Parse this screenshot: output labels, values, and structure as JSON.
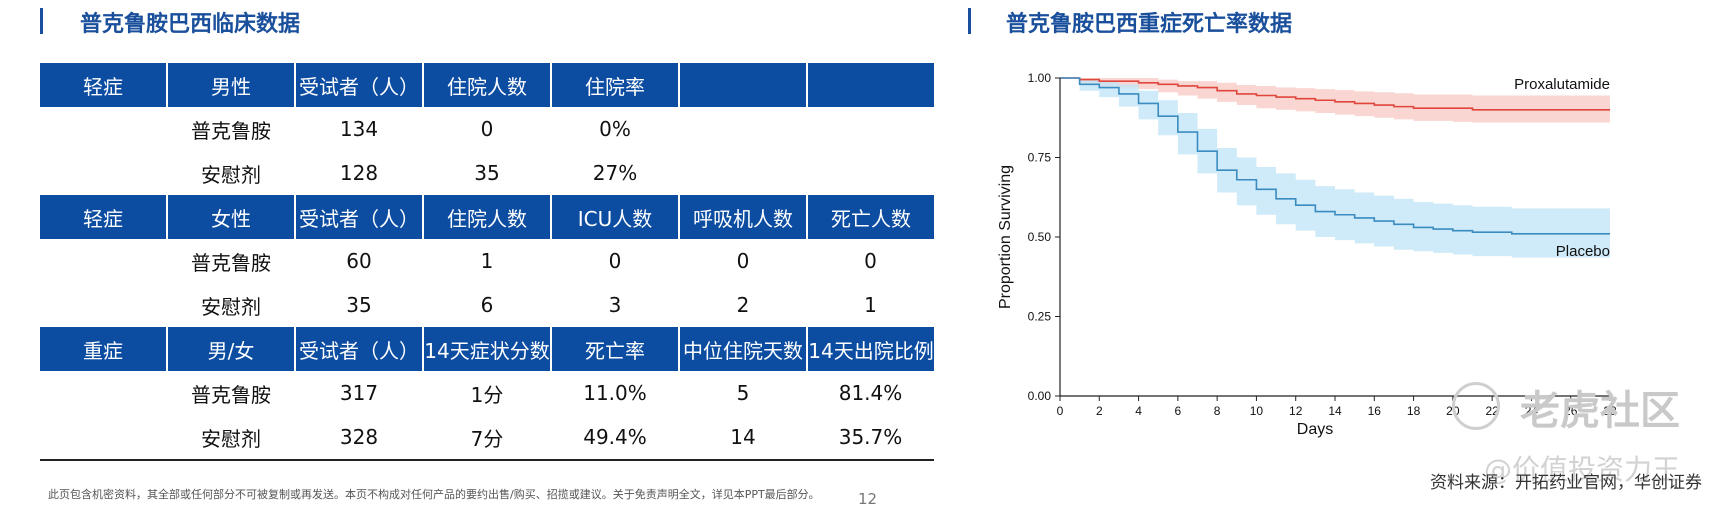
{
  "left": {
    "title": "普克鲁胺巴西临床数据",
    "table": [
      {
        "type": "header",
        "cells": [
          "轻症",
          "男性",
          "受试者（人）",
          "住院人数",
          "住院率",
          "",
          ""
        ]
      },
      {
        "type": "row",
        "cells": [
          "",
          "普克鲁胺",
          "134",
          "0",
          "0%",
          "",
          ""
        ]
      },
      {
        "type": "row",
        "cells": [
          "",
          "安慰剂",
          "128",
          "35",
          "27%",
          "",
          ""
        ]
      },
      {
        "type": "header",
        "cells": [
          "轻症",
          "女性",
          "受试者（人）",
          "住院人数",
          "ICU人数",
          "呼吸机人数",
          "死亡人数"
        ]
      },
      {
        "type": "row",
        "cells": [
          "",
          "普克鲁胺",
          "60",
          "1",
          "0",
          "0",
          "0"
        ]
      },
      {
        "type": "row",
        "cells": [
          "",
          "安慰剂",
          "35",
          "6",
          "3",
          "2",
          "1"
        ]
      },
      {
        "type": "header",
        "cells": [
          "重症",
          "男/女",
          "受试者（人）",
          "14天症状分数",
          "死亡率",
          "中位住院天数",
          "14天出院比例"
        ]
      },
      {
        "type": "row",
        "cells": [
          "",
          "普克鲁胺",
          "317",
          "1分",
          "11.0%",
          "5",
          "81.4%"
        ]
      },
      {
        "type": "row",
        "cells": [
          "",
          "安慰剂",
          "328",
          "7分",
          "49.4%",
          "14",
          "35.7%"
        ]
      }
    ],
    "footnote": "此页包含机密资料，其全部或任何部分不可被复制或再发送。本页不构成对任何产品的要约出售/购买、招揽或建议。关于免责声明全文，详见本PPT最后部分。",
    "page_number": "12"
  },
  "right": {
    "title": "普克鲁胺巴西重症死亡率数据",
    "source": "资料来源：开拓药业官网，华创证券",
    "watermark": "老虎社区",
    "watermark2": "@价值投资力王"
  },
  "chart_data": {
    "type": "line",
    "xlabel": "Days",
    "ylabel": "Proportion Surviving",
    "xlim": [
      0,
      28
    ],
    "ylim": [
      0,
      1
    ],
    "x_ticks": [
      "0",
      "2",
      "4",
      "6",
      "8",
      "10",
      "12",
      "14",
      "16",
      "18",
      "20",
      "22",
      "24",
      "26",
      "28"
    ],
    "y_ticks": [
      "0.00",
      "0.25",
      "0.50",
      "0.75",
      "1.00"
    ],
    "grid": false,
    "series": [
      {
        "name": "Proxalutamide",
        "color": "#e0463c",
        "band_color": "#f7c8c2",
        "x": [
          0,
          1,
          2,
          3,
          4,
          5,
          6,
          7,
          8,
          9,
          10,
          11,
          12,
          13,
          14,
          15,
          16,
          17,
          18,
          19,
          20,
          21,
          22,
          23,
          24,
          25,
          26,
          27,
          28
        ],
        "y": [
          1.0,
          0.995,
          0.99,
          0.99,
          0.985,
          0.98,
          0.975,
          0.97,
          0.96,
          0.95,
          0.945,
          0.94,
          0.935,
          0.93,
          0.925,
          0.92,
          0.915,
          0.91,
          0.905,
          0.905,
          0.905,
          0.9,
          0.9,
          0.9,
          0.9,
          0.9,
          0.9,
          0.9,
          0.9
        ],
        "lower": [
          1.0,
          0.985,
          0.975,
          0.97,
          0.965,
          0.955,
          0.945,
          0.935,
          0.925,
          0.915,
          0.905,
          0.9,
          0.895,
          0.89,
          0.885,
          0.88,
          0.875,
          0.87,
          0.865,
          0.865,
          0.862,
          0.86,
          0.86,
          0.86,
          0.86,
          0.86,
          0.86,
          0.86,
          0.86
        ],
        "upper": [
          1.0,
          1.0,
          1.0,
          1.0,
          1.0,
          0.995,
          0.99,
          0.99,
          0.985,
          0.978,
          0.975,
          0.97,
          0.968,
          0.965,
          0.962,
          0.958,
          0.955,
          0.952,
          0.948,
          0.948,
          0.948,
          0.945,
          0.945,
          0.945,
          0.945,
          0.945,
          0.945,
          0.945,
          0.945
        ]
      },
      {
        "name": "Placebo",
        "color": "#3a8cc0",
        "band_color": "#bfe3f5",
        "x": [
          0,
          1,
          2,
          3,
          4,
          5,
          6,
          7,
          8,
          9,
          10,
          11,
          12,
          13,
          14,
          15,
          16,
          17,
          18,
          19,
          20,
          21,
          22,
          23,
          24,
          25,
          26,
          27,
          28
        ],
        "y": [
          1.0,
          0.98,
          0.97,
          0.95,
          0.92,
          0.88,
          0.83,
          0.77,
          0.71,
          0.68,
          0.65,
          0.62,
          0.6,
          0.58,
          0.57,
          0.56,
          0.55,
          0.54,
          0.53,
          0.525,
          0.52,
          0.515,
          0.515,
          0.51,
          0.51,
          0.51,
          0.51,
          0.51,
          0.51
        ],
        "lower": [
          1.0,
          0.96,
          0.94,
          0.91,
          0.87,
          0.82,
          0.76,
          0.7,
          0.64,
          0.6,
          0.57,
          0.54,
          0.52,
          0.5,
          0.49,
          0.48,
          0.47,
          0.46,
          0.455,
          0.45,
          0.445,
          0.44,
          0.44,
          0.435,
          0.435,
          0.435,
          0.435,
          0.435,
          0.435
        ],
        "upper": [
          1.0,
          0.995,
          0.99,
          0.98,
          0.96,
          0.93,
          0.89,
          0.84,
          0.78,
          0.75,
          0.72,
          0.7,
          0.68,
          0.66,
          0.65,
          0.64,
          0.63,
          0.62,
          0.61,
          0.605,
          0.6,
          0.595,
          0.595,
          0.59,
          0.59,
          0.59,
          0.59,
          0.59,
          0.59
        ]
      }
    ]
  }
}
